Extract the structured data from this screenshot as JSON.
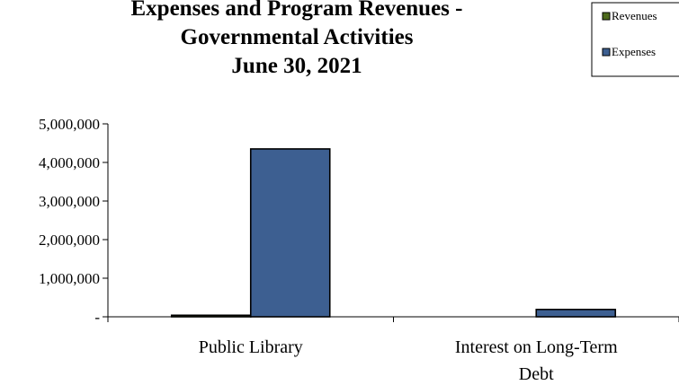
{
  "chart_data": {
    "type": "bar",
    "title_lines": [
      "Expenses and Program Revenues -",
      "Governmental Activities",
      "June 30, 2021"
    ],
    "categories": [
      [
        "Public Library"
      ],
      [
        "Interest on Long-Term",
        "Debt"
      ]
    ],
    "series": [
      {
        "name": "Revenues",
        "color": "#4d6a1c",
        "values": [
          40000,
          0
        ]
      },
      {
        "name": "Expenses",
        "color": "#3d5f91",
        "values": [
          4350000,
          190000
        ]
      }
    ],
    "ylim": [
      0,
      5000000
    ],
    "yticks": [
      {
        "value": 0,
        "label": "-"
      },
      {
        "value": 1000000,
        "label": "1,000,000"
      },
      {
        "value": 2000000,
        "label": "2,000,000"
      },
      {
        "value": 3000000,
        "label": "3,000,000"
      },
      {
        "value": 4000000,
        "label": "4,000,000"
      },
      {
        "value": 5000000,
        "label": "5,000,000"
      }
    ],
    "legend_position": "top-right",
    "grid": false
  }
}
